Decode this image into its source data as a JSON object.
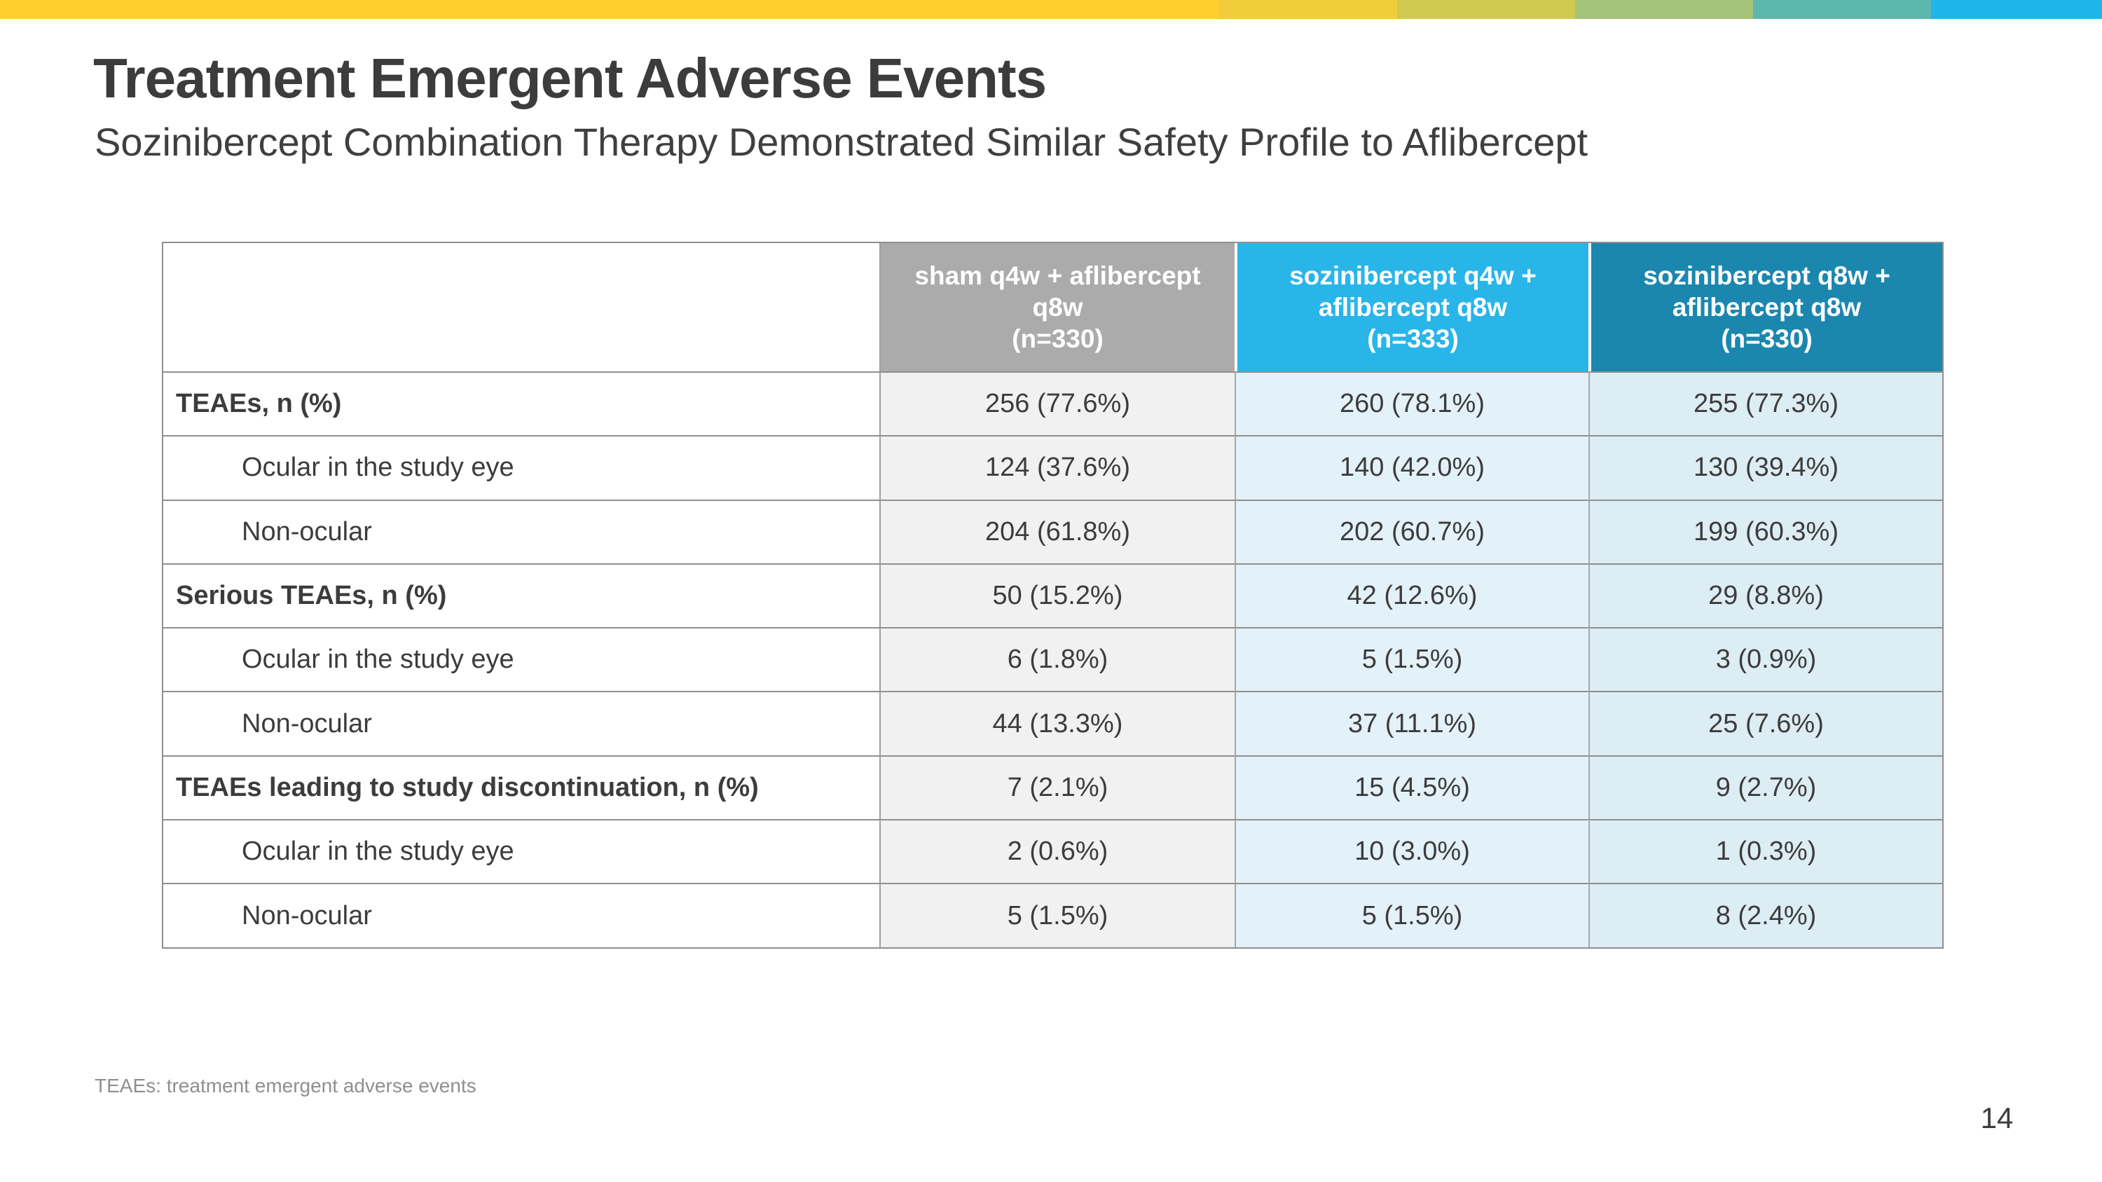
{
  "slide": {
    "title": "Treatment Emergent Adverse Events",
    "subtitle": "Sozinibercept Combination Therapy Demonstrated Similar Safety Profile to Aflibercept",
    "footnote": "TEAEs: treatment emergent adverse events",
    "page_number": "14"
  },
  "accent_bar": {
    "segments": [
      {
        "name": "yellow",
        "color": "#FFD02B"
      },
      {
        "name": "gold",
        "color": "#F2CD3B"
      },
      {
        "name": "olive",
        "color": "#CFC94F"
      },
      {
        "name": "green",
        "color": "#A2C379"
      },
      {
        "name": "teal",
        "color": "#5CB7AC"
      },
      {
        "name": "blue",
        "color": "#1FB5EA"
      }
    ]
  },
  "table": {
    "columns": [
      {
        "label": "sham q4w + aflibercept\nq8w\n(n=330)",
        "header_bg": "#ABABAB",
        "header_text": "#FFFFFF",
        "body_bg": "#F1F1F1"
      },
      {
        "label": "sozinibercept q4w +\naflibercept q8w\n(n=333)",
        "header_bg": "#29B5E8",
        "header_text": "#FFFFFF",
        "body_bg": "#E3F2F9"
      },
      {
        "label": "sozinibercept q8w +\naflibercept q8w\n(n=330)",
        "header_bg": "#1B87AE",
        "header_text": "#FFFFFF",
        "body_bg": "#DCEDF4"
      }
    ],
    "rows": [
      {
        "label": "TEAEs, n (%)",
        "values": [
          "256 (77.6%)",
          "260 (78.1%)",
          "255 (77.3%)"
        ]
      },
      {
        "label": "Ocular in the study eye",
        "values": [
          "124 (37.6%)",
          "140 (42.0%)",
          "130 (39.4%)"
        ]
      },
      {
        "label": "Non-ocular",
        "values": [
          "204 (61.8%)",
          "202 (60.7%)",
          "199 (60.3%)"
        ]
      },
      {
        "label": "Serious TEAEs, n (%)",
        "values": [
          "50 (15.2%)",
          "42 (12.6%)",
          "29 (8.8%)"
        ]
      },
      {
        "label": "Ocular in the study eye",
        "values": [
          "6 (1.8%)",
          "5 (1.5%)",
          "3 (0.9%)"
        ]
      },
      {
        "label": "Non-ocular",
        "values": [
          "44 (13.3%)",
          "37 (11.1%)",
          "25 (7.6%)"
        ]
      },
      {
        "label": "TEAEs leading to study discontinuation, n (%)",
        "values": [
          "7 (2.1%)",
          "15 (4.5%)",
          "9 (2.7%)"
        ]
      },
      {
        "label": "Ocular in the study eye",
        "values": [
          "2 (0.6%)",
          "10 (3.0%)",
          "1 (0.3%)"
        ]
      },
      {
        "label": "Non-ocular",
        "values": [
          "5 (1.5%)",
          "5 (1.5%)",
          "8 (2.4%)"
        ]
      }
    ]
  }
}
